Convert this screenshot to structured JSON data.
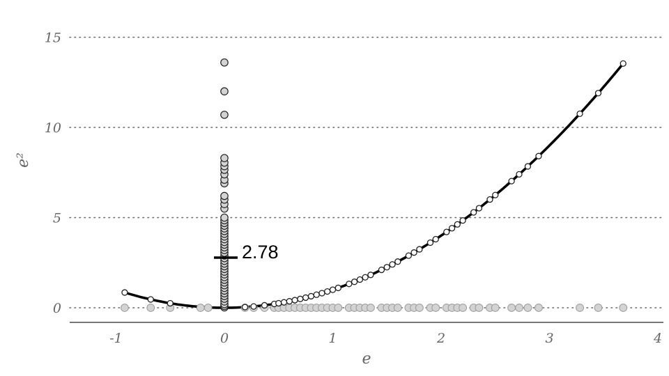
{
  "chart_data": {
    "type": "scatter",
    "title": "",
    "xlabel": "e",
    "ylabel": "e²",
    "xlim": [
      -1.45,
      4.1
    ],
    "ylim": [
      -0.8,
      15.3
    ],
    "x_ticks": [
      -1,
      0,
      1,
      2,
      3,
      4
    ],
    "y_ticks": [
      0,
      5,
      10,
      15
    ],
    "x_tick_labels": [
      "-1",
      "0",
      "1",
      "2",
      "3",
      "4"
    ],
    "y_tick_labels": [
      "0",
      "5",
      "10",
      "15"
    ],
    "grid": "horizontal dotted",
    "mean_marker": {
      "x": 0,
      "value": 2.78,
      "label": "2.78"
    },
    "colors": {
      "curve": "#000000",
      "point_fill_gray": "#d3d3d3",
      "point_fill_white": "#ffffff",
      "point_stroke": "#222222",
      "baseline_point_stroke": "#9a9a9a"
    },
    "series": [
      {
        "role": "e-values on baseline (e, 0)",
        "x": [
          -0.92,
          -0.68,
          -0.5,
          -0.22,
          -0.15,
          0.19,
          0.27,
          0.37,
          0.46,
          0.5,
          0.55,
          0.6,
          0.65,
          0.7,
          0.75,
          0.8,
          0.85,
          0.9,
          0.95,
          1.0,
          1.05,
          1.15,
          1.2,
          1.25,
          1.3,
          1.35,
          1.45,
          1.5,
          1.55,
          1.6,
          1.7,
          1.75,
          1.8,
          1.9,
          1.95,
          2.05,
          2.1,
          2.15,
          2.2,
          2.3,
          2.35,
          2.45,
          2.5,
          2.65,
          2.72,
          2.8,
          2.9,
          3.28,
          3.45,
          3.68
        ]
      },
      {
        "role": "squared residuals at e = 0",
        "y": [
          0.02,
          0.1,
          0.2,
          0.35,
          0.5,
          0.65,
          0.8,
          0.95,
          1.1,
          1.25,
          1.4,
          1.55,
          1.7,
          1.85,
          2.0,
          2.15,
          2.3,
          2.45,
          2.6,
          2.75,
          2.9,
          3.05,
          3.2,
          3.35,
          3.5,
          3.65,
          3.8,
          3.95,
          4.1,
          4.25,
          4.4,
          4.55,
          4.7,
          4.85,
          5.0,
          5.5,
          5.75,
          6.0,
          6.2,
          6.9,
          7.1,
          7.4,
          7.65,
          7.85,
          8.05,
          8.3,
          10.7,
          12.0,
          13.6
        ]
      },
      {
        "role": "curve points (e, e²)",
        "x": [
          -0.92,
          -0.68,
          -0.5,
          0.19,
          0.27,
          0.37,
          0.46,
          0.5,
          0.55,
          0.6,
          0.65,
          0.7,
          0.75,
          0.8,
          0.85,
          0.9,
          0.95,
          1.0,
          1.05,
          1.15,
          1.2,
          1.25,
          1.3,
          1.35,
          1.45,
          1.5,
          1.55,
          1.6,
          1.7,
          1.75,
          1.8,
          1.9,
          1.95,
          2.05,
          2.1,
          2.15,
          2.2,
          2.3,
          2.35,
          2.45,
          2.5,
          2.65,
          2.72,
          2.8,
          2.9,
          3.28,
          3.45,
          3.68
        ]
      }
    ]
  }
}
